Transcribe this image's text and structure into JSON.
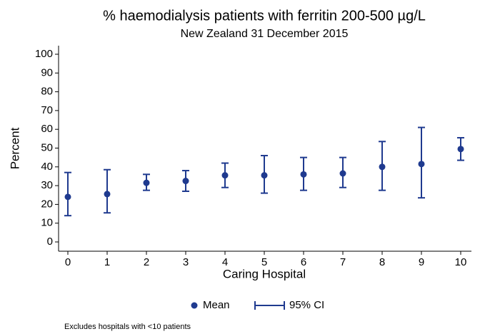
{
  "chart_data": {
    "type": "errorbar",
    "title": "% haemodialysis patients with ferritin 200-500 µg/L",
    "subtitle": "New Zealand 31 December 2015",
    "x_label": "Caring Hospital",
    "y_label": "Percent",
    "note": "Excludes hospitals with <10 patients",
    "x": [
      0,
      1,
      2,
      3,
      4,
      5,
      6,
      7,
      8,
      9,
      10
    ],
    "series": [
      {
        "name": "Mean",
        "color": "#1f3a8f",
        "values": [
          24,
          25.5,
          31.5,
          32.5,
          35.5,
          35.5,
          36,
          36.5,
          40,
          41.5,
          49.5
        ]
      },
      {
        "name": "95% CI",
        "color": "#1f3a8f",
        "low": [
          14,
          15.5,
          27.5,
          27,
          29,
          26,
          27.5,
          29,
          27.5,
          23.5,
          43.5
        ],
        "high": [
          37,
          38.5,
          36,
          38,
          42,
          46,
          45,
          45,
          53.5,
          61,
          55.5
        ]
      }
    ],
    "xlim": [
      0,
      10
    ],
    "ylim": [
      0,
      100
    ],
    "xticks": [
      0,
      1,
      2,
      3,
      4,
      5,
      6,
      7,
      8,
      9,
      10
    ],
    "yticks": [
      0,
      10,
      20,
      30,
      40,
      50,
      60,
      70,
      80,
      90,
      100
    ],
    "grid": false,
    "legend": "bottom"
  }
}
